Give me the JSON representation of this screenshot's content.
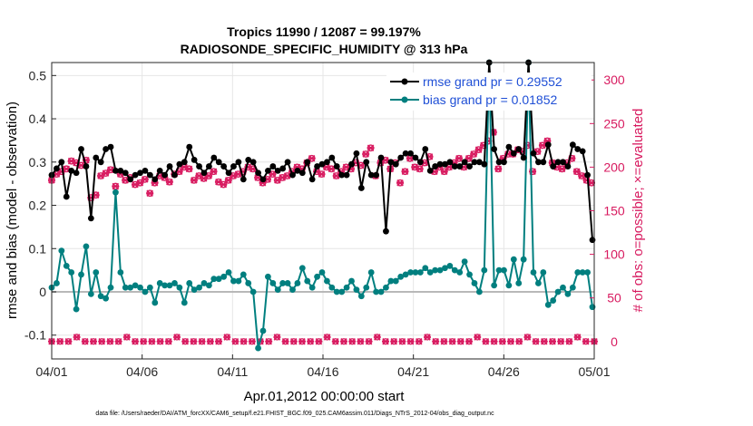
{
  "chart_data": {
    "type": "line",
    "title": [
      "Tropics 11990 / 12087 = 99.197%",
      "RADIOSONDE_SPECIFIC_HUMIDITY @ 313 hPa"
    ],
    "xlabel": "Apr.01,2012 00:00:00 start",
    "ylabel_left": "rmse and bias (model - observation)",
    "ylabel_right": "# of obs: o=possible; ×=evaluated",
    "footer": "data file: /Users/raeder/DAI/ATM_forcXX/CAM6_setup/f.e21.FHIST_BGC.f09_025.CAM6assim.011/Diags_NTrS_2012-04/obs_diag_output.nc",
    "x_ticks": [
      "04/01",
      "04/06",
      "04/11",
      "04/16",
      "04/21",
      "04/26",
      "05/01"
    ],
    "y_left_ticks": [
      "-0.1",
      "0",
      "0.1",
      "0.2",
      "0.3",
      "0.4",
      "0.5"
    ],
    "y_right_ticks": [
      "0",
      "50",
      "100",
      "150",
      "200",
      "250",
      "300"
    ],
    "xlim_days": [
      0,
      30
    ],
    "ylim_left": [
      -0.155,
      0.53
    ],
    "ylim_right": [
      -20,
      320
    ],
    "grid": true,
    "legend_position": "top-right",
    "colors": {
      "rmse": "#000000",
      "bias": "#007f7f",
      "obs": "#d81b60",
      "zero_line": "#b8b8b8",
      "legend_text": "#1f4fd6",
      "right_axis": "#d81b60"
    },
    "series": [
      {
        "name": "rmse",
        "legend": "rmse grand pr = 0.29552",
        "values": [
          0.27,
          0.285,
          0.3,
          0.22,
          0.28,
          0.275,
          0.33,
          0.29,
          0.17,
          0.31,
          0.3,
          0.33,
          0.335,
          0.28,
          0.28,
          0.275,
          0.26,
          0.27,
          0.275,
          0.28,
          0.27,
          0.26,
          0.28,
          0.27,
          0.29,
          0.27,
          0.295,
          0.3,
          0.335,
          0.305,
          0.29,
          0.275,
          0.29,
          0.31,
          0.3,
          0.29,
          0.275,
          0.29,
          0.3,
          0.26,
          0.305,
          0.3,
          0.275,
          0.26,
          0.28,
          0.29,
          0.28,
          0.285,
          0.3,
          0.27,
          0.28,
          0.275,
          0.3,
          0.26,
          0.29,
          0.295,
          0.3,
          0.31,
          0.29,
          0.27,
          0.27,
          0.295,
          0.32,
          0.24,
          0.3,
          0.27,
          0.27,
          0.31,
          0.14,
          0.3,
          0.295,
          0.31,
          0.32,
          0.32,
          0.31,
          0.3,
          0.33,
          0.28,
          0.29,
          0.295,
          0.295,
          0.3,
          0.29,
          0.29,
          0.3,
          0.29,
          0.3,
          0.3,
          0.295,
          0.53,
          0.33,
          0.3,
          0.3,
          0.335,
          0.32,
          0.33,
          0.31,
          0.53,
          0.32,
          0.3,
          0.3,
          0.34,
          0.29,
          0.3,
          0.3,
          0.29,
          0.34,
          0.33,
          0.325,
          0.27,
          0.12
        ]
      },
      {
        "name": "bias",
        "legend": "bias grand pr = 0.01852",
        "values": [
          0.01,
          0.02,
          0.095,
          0.06,
          0.045,
          -0.04,
          0.04,
          0.105,
          -0.005,
          0.045,
          -0.01,
          -0.015,
          0.01,
          0.23,
          0.045,
          0.01,
          0.01,
          0.015,
          0.01,
          0.0,
          0.01,
          -0.025,
          0.02,
          0.015,
          0.015,
          0.02,
          0.01,
          -0.025,
          0.02,
          0.005,
          0.01,
          0.02,
          0.015,
          0.03,
          0.03,
          0.035,
          0.045,
          0.025,
          0.025,
          0.04,
          0.02,
          0.0,
          -0.13,
          -0.09,
          0.035,
          0.02,
          0.005,
          0.02,
          0.02,
          0.005,
          0.02,
          0.055,
          0.025,
          0.01,
          0.035,
          0.045,
          0.025,
          0.01,
          0.0,
          0.0,
          0.01,
          0.025,
          0.005,
          -0.01,
          0.01,
          0.045,
          0.0,
          0.0,
          0.01,
          0.025,
          0.025,
          0.035,
          0.04,
          0.045,
          0.045,
          0.045,
          0.055,
          0.045,
          0.05,
          0.05,
          0.055,
          0.06,
          0.05,
          0.045,
          0.07,
          0.04,
          0.02,
          0.0,
          0.05,
          0.53,
          0.015,
          0.05,
          0.05,
          0.015,
          0.075,
          0.02,
          0.075,
          0.53,
          0.045,
          0.02,
          0.045,
          -0.03,
          -0.02,
          0.0,
          0.01,
          -0.005,
          0.01,
          0.045,
          0.045,
          0.045,
          -0.035
        ]
      }
    ],
    "obs_series": {
      "name": "obs",
      "possible": [
        185,
        192,
        195,
        198,
        207,
        205,
        202,
        208,
        165,
        168,
        190,
        193,
        197,
        178,
        192,
        185,
        188,
        180,
        182,
        186,
        170,
        182,
        190,
        188,
        183,
        192,
        195,
        200,
        198,
        185,
        190,
        187,
        190,
        195,
        183,
        180,
        185,
        190,
        192,
        195,
        200,
        198,
        188,
        182,
        186,
        192,
        185,
        188,
        190,
        195,
        200,
        198,
        205,
        210,
        195,
        192,
        200,
        198,
        190,
        195,
        200,
        198,
        205,
        202,
        215,
        222,
        190,
        205,
        208,
        198,
        205,
        182,
        195,
        210,
        200,
        198,
        205,
        212,
        195,
        200,
        195,
        200,
        205,
        210,
        200,
        210,
        215,
        220,
        225,
        230,
        240,
        198,
        210,
        215,
        215,
        220,
        218,
        225,
        195,
        218,
        225,
        230,
        205,
        200,
        198,
        205,
        210,
        195,
        190,
        185,
        182
      ],
      "evaluated": [
        185,
        192,
        195,
        198,
        207,
        205,
        202,
        208,
        165,
        168,
        190,
        193,
        197,
        178,
        192,
        185,
        188,
        180,
        182,
        186,
        170,
        182,
        190,
        188,
        183,
        192,
        195,
        200,
        198,
        185,
        190,
        187,
        190,
        195,
        183,
        180,
        185,
        190,
        192,
        195,
        200,
        198,
        188,
        182,
        186,
        192,
        185,
        188,
        190,
        195,
        200,
        198,
        205,
        210,
        195,
        192,
        200,
        198,
        190,
        195,
        200,
        198,
        205,
        202,
        215,
        222,
        190,
        205,
        208,
        198,
        205,
        182,
        195,
        210,
        200,
        198,
        205,
        212,
        195,
        200,
        195,
        200,
        205,
        210,
        200,
        210,
        215,
        220,
        225,
        230,
        240,
        198,
        210,
        215,
        215,
        220,
        218,
        225,
        195,
        218,
        225,
        230,
        205,
        200,
        198,
        205,
        210,
        195,
        190,
        185,
        182
      ],
      "zero_counts_day_range": [
        0,
        30
      ],
      "zero_count_bump": 5
    },
    "zero_line": 0
  }
}
